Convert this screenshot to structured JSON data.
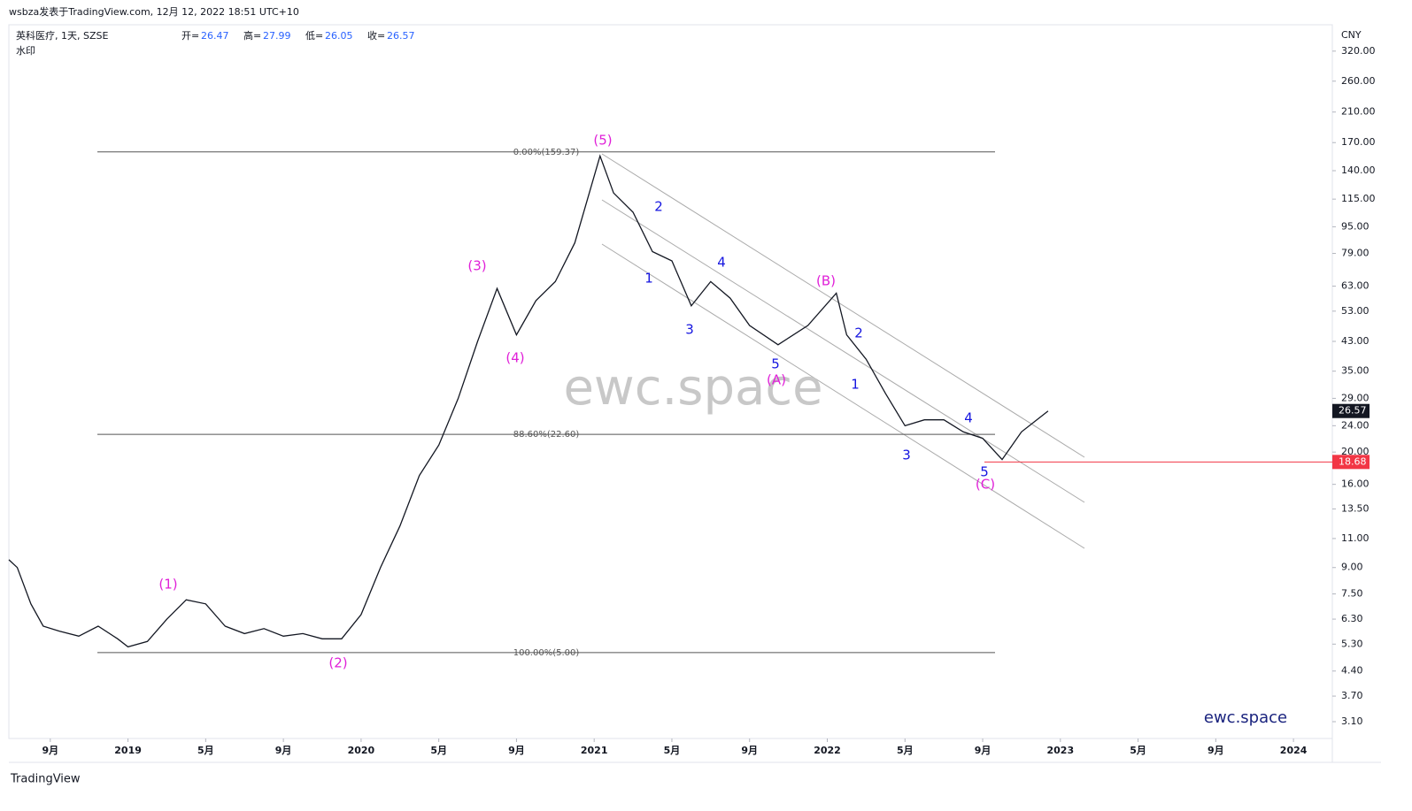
{
  "header": {
    "byline": "wsbza发表于TradingView.com, 12月 12, 2022 18:51 UTC+10",
    "symbol": "英科医疗, 1天, SZSE",
    "ohlc": [
      {
        "label": "开=",
        "value": 26.47
      },
      {
        "label": "高=",
        "value": 27.99
      },
      {
        "label": "低=",
        "value": 26.05
      },
      {
        "label": "收=",
        "value": 26.57
      }
    ],
    "watermark_label": "水印"
  },
  "chart_data": {
    "type": "line",
    "currency": "CNY",
    "log_scale": true,
    "color": "#131722",
    "x": [
      "2018-06-27",
      "2018-07-10",
      "2018-08-01",
      "2018-08-20",
      "2018-09-15",
      "2018-10-15",
      "2018-11-15",
      "2018-12-15",
      "2019-01-01",
      "2019-02-01",
      "2019-03-01",
      "2019-04-01",
      "2019-05-01",
      "2019-06-01",
      "2019-07-01",
      "2019-08-01",
      "2019-09-01",
      "2019-10-01",
      "2019-11-01",
      "2019-12-01",
      "2020-01-01",
      "2020-02-01",
      "2020-03-01",
      "2020-04-01",
      "2020-05-01",
      "2020-06-01",
      "2020-07-01",
      "2020-08-01",
      "2020-09-01",
      "2020-10-01",
      "2020-11-01",
      "2020-12-01",
      "2021-01-10",
      "2021-02-01",
      "2021-03-01",
      "2021-04-01",
      "2021-05-01",
      "2021-06-01",
      "2021-07-01",
      "2021-08-01",
      "2021-09-01",
      "2021-10-15",
      "2021-12-01",
      "2022-01-15",
      "2022-02-01",
      "2022-03-01",
      "2022-04-01",
      "2022-05-01",
      "2022-06-01",
      "2022-07-01",
      "2022-08-01",
      "2022-09-01",
      "2022-10-01",
      "2022-11-01",
      "2022-12-12"
    ],
    "values": [
      9.5,
      9.0,
      7.0,
      6.0,
      5.8,
      5.6,
      6.0,
      5.5,
      5.2,
      5.4,
      6.3,
      7.2,
      7.0,
      6.0,
      5.7,
      5.9,
      5.6,
      5.7,
      5.5,
      5.5,
      6.5,
      9.0,
      12,
      17,
      21,
      29,
      43,
      62,
      45,
      57,
      65,
      85,
      155,
      120,
      105,
      80,
      75,
      55,
      65,
      58,
      48,
      42,
      48,
      60,
      45,
      38,
      30,
      24,
      25,
      25,
      23,
      22,
      19,
      23,
      26.57
    ],
    "xlim": [
      "2018-06-27",
      "2024-03-01"
    ],
    "xticks": [
      {
        "value": "2018-09-01",
        "label": "9月"
      },
      {
        "value": "2019-01-01",
        "label": "2019"
      },
      {
        "value": "2019-05-01",
        "label": "5月"
      },
      {
        "value": "2019-09-01",
        "label": "9月"
      },
      {
        "value": "2020-01-01",
        "label": "2020"
      },
      {
        "value": "2020-05-01",
        "label": "5月"
      },
      {
        "value": "2020-09-01",
        "label": "9月"
      },
      {
        "value": "2021-01-01",
        "label": "2021"
      },
      {
        "value": "2021-05-01",
        "label": "5月"
      },
      {
        "value": "2021-09-01",
        "label": "9月"
      },
      {
        "value": "2022-01-01",
        "label": "2022"
      },
      {
        "value": "2022-05-01",
        "label": "5月"
      },
      {
        "value": "2022-09-01",
        "label": "9月"
      },
      {
        "value": "2023-01-01",
        "label": "2023"
      },
      {
        "value": "2023-05-01",
        "label": "5月"
      },
      {
        "value": "2023-09-01",
        "label": "9月"
      },
      {
        "value": "2024-01-01",
        "label": "2024"
      }
    ],
    "ylim": [
      2.76,
      384
    ],
    "yticks": [
      {
        "value": 320,
        "label": "320.00"
      },
      {
        "value": 260,
        "label": "260.00"
      },
      {
        "value": 210,
        "label": "210.00"
      },
      {
        "value": 170,
        "label": "170.00"
      },
      {
        "value": 140,
        "label": "140.00"
      },
      {
        "value": 115,
        "label": "115.00"
      },
      {
        "value": 95,
        "label": "95.00"
      },
      {
        "value": 79,
        "label": "79.00"
      },
      {
        "value": 63,
        "label": "63.00"
      },
      {
        "value": 53,
        "label": "53.00"
      },
      {
        "value": 43,
        "label": "43.00"
      },
      {
        "value": 35,
        "label": "35.00"
      },
      {
        "value": 29,
        "label": "29.00"
      },
      {
        "value": 24,
        "label": "24.00"
      },
      {
        "value": 20,
        "label": "20.00"
      },
      {
        "value": 16,
        "label": "16.00"
      },
      {
        "value": 13.5,
        "label": "13.50"
      },
      {
        "value": 11,
        "label": "11.00"
      },
      {
        "value": 9,
        "label": "9.00"
      },
      {
        "value": 7.5,
        "label": "7.50"
      },
      {
        "value": 6.3,
        "label": "6.30"
      },
      {
        "value": 5.3,
        "label": "5.30"
      },
      {
        "value": 4.4,
        "label": "4.40"
      },
      {
        "value": 3.7,
        "label": "3.70"
      },
      {
        "value": 3.1,
        "label": "3.10"
      }
    ],
    "last_price": 26.57,
    "last_price_color": "#131722",
    "hline": 18.68,
    "hline_color": "#f23645",
    "fib_levels": [
      {
        "value": 159.37,
        "label": "0.00%(159.37)"
      },
      {
        "value": 22.6,
        "label": "88.60%(22.60)"
      },
      {
        "value": 5.0,
        "label": "100.00%(5.00)"
      }
    ],
    "annotations": [
      {
        "text": "(1)",
        "color": "#e020d8"
      },
      {
        "text": "(2)",
        "color": "#e020d8"
      },
      {
        "text": "(3)",
        "color": "#e020d8"
      },
      {
        "text": "(4)",
        "color": "#e020d8"
      },
      {
        "text": "(5)",
        "color": "#e020d8"
      },
      {
        "text": "(A)",
        "color": "#e020d8"
      },
      {
        "text": "(B)",
        "color": "#e020d8"
      },
      {
        "text": "(C)",
        "color": "#e020d8"
      },
      {
        "text": "2",
        "color": "#1515e0"
      },
      {
        "text": "1",
        "color": "#1515e0"
      },
      {
        "text": "4",
        "color": "#1515e0"
      },
      {
        "text": "3",
        "color": "#1515e0"
      },
      {
        "text": "5",
        "color": "#1515e0"
      },
      {
        "text": "2",
        "color": "#1515e0"
      },
      {
        "text": "1",
        "color": "#1515e0"
      },
      {
        "text": "3",
        "color": "#1515e0"
      },
      {
        "text": "4",
        "color": "#1515e0"
      },
      {
        "text": "5",
        "color": "#1515e0"
      }
    ],
    "watermark": "ewc.space",
    "brand": "ewc.space"
  },
  "footer": {
    "logo": "TradingView"
  }
}
